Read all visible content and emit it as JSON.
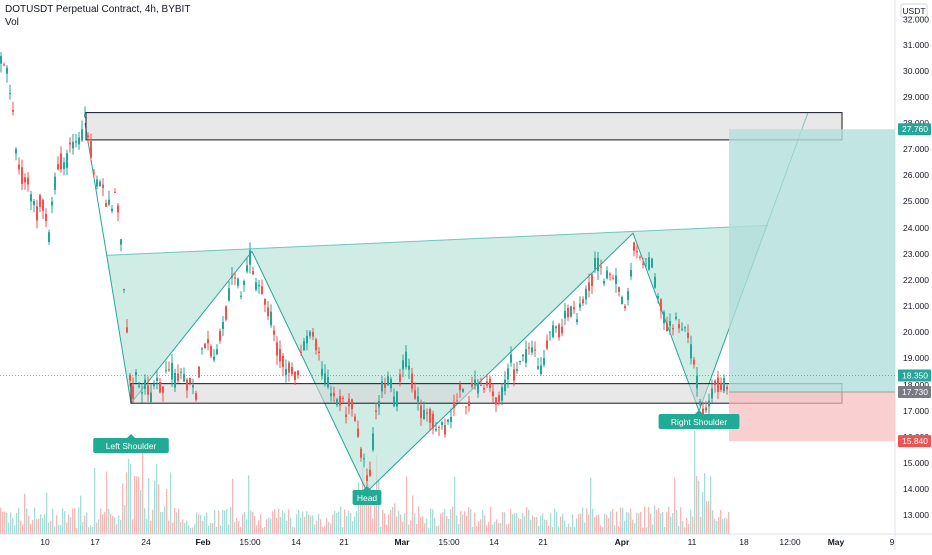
{
  "header": {
    "title": "DOTUSDT Perpetual Contract, 4h, BYBIT",
    "volume_label": "Vol"
  },
  "chart_data": {
    "type": "candlestick",
    "symbol": "DOTUSDT Perpetual Contract",
    "timeframe": "4h",
    "exchange": "BYBIT",
    "currency_badge": "USDT",
    "y_ticks": [
      "32.000",
      "31.000",
      "30.000",
      "29.000",
      "28.000",
      "27.000",
      "26.000",
      "25.000",
      "24.000",
      "23.000",
      "22.000",
      "21.000",
      "20.000",
      "19.000",
      "18.000",
      "17.000",
      "16.000",
      "15.000",
      "14.000",
      "13.000"
    ],
    "x_ticks": [
      "10",
      "17",
      "24",
      "Feb",
      "15:00",
      "14",
      "21",
      "Mar",
      "15:00",
      "14",
      "21",
      "Apr",
      "11",
      "18",
      "12:00",
      "May",
      "9"
    ],
    "price_labels": [
      {
        "value": "27.760",
        "color": "#26a69a"
      },
      {
        "value": "18.350",
        "color": "#26a69a"
      },
      {
        "value": "17.730",
        "color": "#787b86"
      },
      {
        "value": "15.840",
        "color": "#ef5350"
      }
    ],
    "annotations": [
      "Left Shoulder",
      "Head",
      "Right Shoulder"
    ],
    "price_path": [
      [
        0,
        30.6
      ],
      [
        3,
        30.3
      ],
      [
        8,
        29.7
      ],
      [
        12,
        28.2
      ],
      [
        16,
        26.6
      ],
      [
        20,
        26.0
      ],
      [
        25,
        25.8
      ],
      [
        30,
        25.2
      ],
      [
        35,
        24.4
      ],
      [
        40,
        25.3
      ],
      [
        45,
        24.5
      ],
      [
        48,
        23.8
      ],
      [
        52,
        25.3
      ],
      [
        56,
        26.0
      ],
      [
        60,
        26.5
      ],
      [
        65,
        26.4
      ],
      [
        70,
        27.2
      ],
      [
        75,
        27.4
      ],
      [
        80,
        27.3
      ],
      [
        85,
        28.2
      ],
      [
        90,
        27.0
      ],
      [
        95,
        26.0
      ],
      [
        100,
        25.5
      ],
      [
        105,
        25.0
      ],
      [
        110,
        24.5
      ],
      [
        115,
        25.3
      ],
      [
        118,
        24.5
      ],
      [
        120,
        23.3
      ],
      [
        122,
        22.0
      ],
      [
        124,
        21.0
      ],
      [
        126,
        20.0
      ],
      [
        128,
        19.0
      ],
      [
        131,
        17.5
      ],
      [
        135,
        18.5
      ],
      [
        140,
        17.8
      ],
      [
        145,
        18.2
      ],
      [
        150,
        17.5
      ],
      [
        155,
        18.0
      ],
      [
        160,
        17.8
      ],
      [
        165,
        18.3
      ],
      [
        170,
        18.6
      ],
      [
        175,
        18.0
      ],
      [
        180,
        18.8
      ],
      [
        185,
        17.9
      ],
      [
        190,
        18.4
      ],
      [
        195,
        17.6
      ],
      [
        200,
        19.2
      ],
      [
        205,
        19.7
      ],
      [
        210,
        19.3
      ],
      [
        215,
        19.0
      ],
      [
        220,
        20.0
      ],
      [
        225,
        20.8
      ],
      [
        230,
        21.8
      ],
      [
        235,
        22.0
      ],
      [
        240,
        21.5
      ],
      [
        245,
        22.5
      ],
      [
        250,
        22.9
      ],
      [
        255,
        21.8
      ],
      [
        260,
        22.0
      ],
      [
        265,
        21.0
      ],
      [
        270,
        20.5
      ],
      [
        275,
        19.5
      ],
      [
        280,
        19.0
      ],
      [
        285,
        18.5
      ],
      [
        290,
        18.9
      ],
      [
        295,
        18.2
      ],
      [
        300,
        19.0
      ],
      [
        305,
        19.7
      ],
      [
        310,
        20.0
      ],
      [
        315,
        19.4
      ],
      [
        320,
        18.6
      ],
      [
        325,
        18.2
      ],
      [
        330,
        17.7
      ],
      [
        335,
        17.3
      ],
      [
        340,
        17.5
      ],
      [
        345,
        17.0
      ],
      [
        350,
        17.3
      ],
      [
        355,
        16.5
      ],
      [
        360,
        15.5
      ],
      [
        365,
        14.6
      ],
      [
        368,
        14.0
      ],
      [
        372,
        15.8
      ],
      [
        376,
        17.0
      ],
      [
        380,
        17.8
      ],
      [
        385,
        18.1
      ],
      [
        390,
        17.9
      ],
      [
        395,
        17.2
      ],
      [
        400,
        18.7
      ],
      [
        405,
        18.9
      ],
      [
        410,
        18.3
      ],
      [
        415,
        17.7
      ],
      [
        420,
        17.0
      ],
      [
        425,
        16.7
      ],
      [
        430,
        16.9
      ],
      [
        435,
        16.2
      ],
      [
        440,
        16.6
      ],
      [
        445,
        16.3
      ],
      [
        450,
        16.8
      ],
      [
        455,
        17.4
      ],
      [
        460,
        17.8
      ],
      [
        465,
        17.3
      ],
      [
        470,
        17.7
      ],
      [
        475,
        18.0
      ],
      [
        480,
        18.0
      ],
      [
        485,
        18.2
      ],
      [
        490,
        18.0
      ],
      [
        495,
        17.3
      ],
      [
        500,
        17.5
      ],
      [
        505,
        18.1
      ],
      [
        510,
        18.8
      ],
      [
        515,
        18.3
      ],
      [
        520,
        18.9
      ],
      [
        525,
        19.0
      ],
      [
        530,
        19.3
      ],
      [
        535,
        19.1
      ],
      [
        540,
        18.6
      ],
      [
        545,
        19.4
      ],
      [
        550,
        19.9
      ],
      [
        555,
        20.2
      ],
      [
        560,
        20.1
      ],
      [
        565,
        20.6
      ],
      [
        570,
        20.8
      ],
      [
        575,
        20.6
      ],
      [
        580,
        21.1
      ],
      [
        585,
        21.4
      ],
      [
        590,
        21.7
      ],
      [
        595,
        22.8
      ],
      [
        600,
        22.4
      ],
      [
        605,
        22.0
      ],
      [
        610,
        22.6
      ],
      [
        615,
        22.1
      ],
      [
        620,
        21.5
      ],
      [
        625,
        20.8
      ],
      [
        628,
        21.5
      ],
      [
        632,
        23.3
      ],
      [
        636,
        22.8
      ],
      [
        640,
        23.2
      ],
      [
        645,
        22.5
      ],
      [
        650,
        22.8
      ],
      [
        655,
        21.8
      ],
      [
        660,
        21.0
      ],
      [
        665,
        20.2
      ],
      [
        670,
        20.4
      ],
      [
        675,
        20.5
      ],
      [
        680,
        19.8
      ],
      [
        685,
        20.0
      ],
      [
        690,
        19.3
      ],
      [
        695,
        18.5
      ],
      [
        698,
        17.4
      ],
      [
        702,
        17.0
      ],
      [
        706,
        17.3
      ],
      [
        710,
        17.5
      ],
      [
        715,
        17.9
      ],
      [
        720,
        18.1
      ],
      [
        724,
        18.0
      ],
      [
        728,
        18.3
      ]
    ],
    "zones": [
      {
        "name": "upper",
        "top": 28.4,
        "bottom": 27.35
      },
      {
        "name": "lower",
        "top": 18.05,
        "bottom": 17.3
      }
    ],
    "pattern_points": {
      "left_shoulder": [
        131,
        17.3
      ],
      "neck_left": [
        252,
        23.1
      ],
      "head": [
        367,
        13.9
      ],
      "neck_right": [
        633,
        23.8
      ],
      "right_shoulder": [
        699,
        17.0
      ]
    },
    "projection_target": [
      808,
      28.4
    ],
    "position": {
      "entry": 17.73,
      "target": 27.76,
      "stop": 15.84,
      "last": 18.35
    },
    "colors": {
      "up": "#26a69a",
      "down": "#ef5350",
      "profit_fill": "#b2dfdb",
      "loss_fill": "#f8bbbb",
      "pattern_fill": "#bfe5dc",
      "zone_fill": "#d6d6d6"
    }
  }
}
